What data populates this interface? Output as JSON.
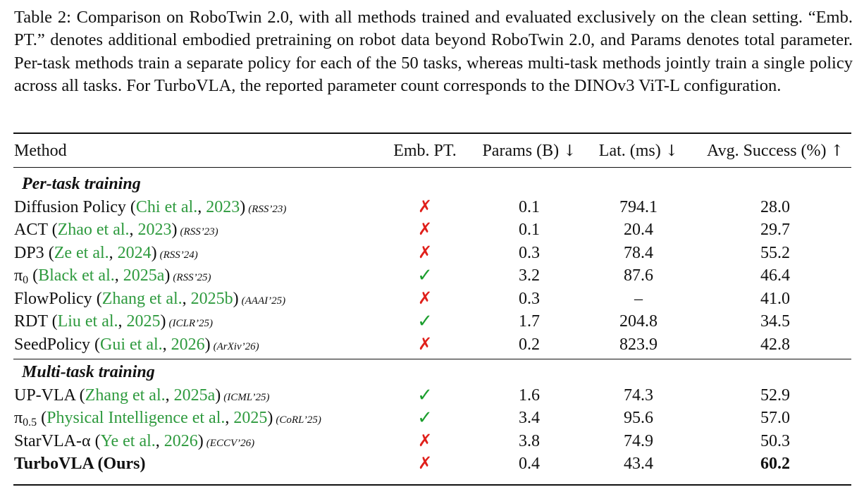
{
  "caption": "Table 2: Comparison on RoboTwin 2.0, with all methods trained and evaluated exclusively on the clean setting. “Emb. PT.” denotes additional embodied pretraining on robot data beyond RoboTwin 2.0, and Params denotes total parameter. Per-task methods train a separate policy for each of the 50 tasks, whereas multi-task methods jointly train a single policy across all tasks. For TurboVLA, the reported parameter count corresponds to the DINOv3 ViT-L configuration.",
  "headers": {
    "method": "Method",
    "emb_pt": "Emb. PT.",
    "params": "Params (B)",
    "latency": "Lat. (ms)",
    "success": "Avg. Success (%)",
    "down_arrow": "↓",
    "up_arrow": "↑"
  },
  "sections": [
    {
      "title": "Per-task training",
      "rows": [
        {
          "method": "Diffusion Policy",
          "prefix": "",
          "sub": "",
          "authors": "Chi et al.",
          "year": "2023",
          "venue": "(RSS’23)",
          "emb": "✗",
          "params": "0.1",
          "latency": "794.1",
          "success": "28.0"
        },
        {
          "method": "ACT",
          "prefix": "",
          "sub": "",
          "authors": "Zhao et al.",
          "year": "2023",
          "venue": "(RSS’23)",
          "emb": "✗",
          "params": "0.1",
          "latency": "20.4",
          "success": "29.7"
        },
        {
          "method": "DP3",
          "prefix": "",
          "sub": "",
          "authors": "Ze et al.",
          "year": "2024",
          "venue": "(RSS’24)",
          "emb": "✗",
          "params": "0.3",
          "latency": "78.4",
          "success": "55.2"
        },
        {
          "method": "π",
          "prefix": "",
          "sub": "0",
          "authors": "Black et al.",
          "year": "2025a",
          "venue": "(RSS’25)",
          "emb": "✓",
          "params": "3.2",
          "latency": "87.6",
          "success": "46.4"
        },
        {
          "method": "FlowPolicy",
          "prefix": "",
          "sub": "",
          "authors": "Zhang et al.",
          "year": "2025b",
          "venue": "(AAAI’25)",
          "emb": "✗",
          "params": "0.3",
          "latency": "–",
          "success": "41.0"
        },
        {
          "method": "RDT",
          "prefix": "",
          "sub": "",
          "authors": "Liu et al.",
          "year": "2025",
          "venue": "(ICLR’25)",
          "emb": "✓",
          "params": "1.7",
          "latency": "204.8",
          "success": "34.5"
        },
        {
          "method": "SeedPolicy",
          "prefix": "",
          "sub": "",
          "authors": "Gui et al.",
          "year": "2026",
          "venue": "(ArXiv’26)",
          "emb": "✗",
          "params": "0.2",
          "latency": "823.9",
          "success": "42.8"
        }
      ]
    },
    {
      "title": "Multi-task training",
      "rows": [
        {
          "method": "UP-VLA",
          "prefix": "",
          "sub": "",
          "authors": "Zhang et al.",
          "year": "2025a",
          "venue": "(ICML’25)",
          "emb": "✓",
          "params": "1.6",
          "latency": "74.3",
          "success": "52.9"
        },
        {
          "method": "π",
          "prefix": "",
          "sub": "0.5",
          "authors": "Physical Intelligence et al.",
          "year": "2025",
          "venue": "(CoRL’25)",
          "emb": "✓",
          "params": "3.4",
          "latency": "95.6",
          "success": "57.0"
        },
        {
          "method": "StarVLA-α",
          "prefix": "",
          "sub": "",
          "authors": "Ye et al.",
          "year": "2026",
          "venue": "(ECCV’26)",
          "emb": "✗",
          "params": "3.8",
          "latency": "74.9",
          "success": "50.3"
        },
        {
          "method": "TurboVLA (Ours)",
          "prefix": "",
          "sub": "",
          "authors": "",
          "year": "",
          "venue": "",
          "emb": "✗",
          "params": "0.4",
          "latency": "43.4",
          "success": "60.2",
          "bold": true
        }
      ]
    }
  ],
  "colors": {
    "citation": "#2e9a3e",
    "cross": "#e0201b",
    "check": "#1c9e2e"
  }
}
